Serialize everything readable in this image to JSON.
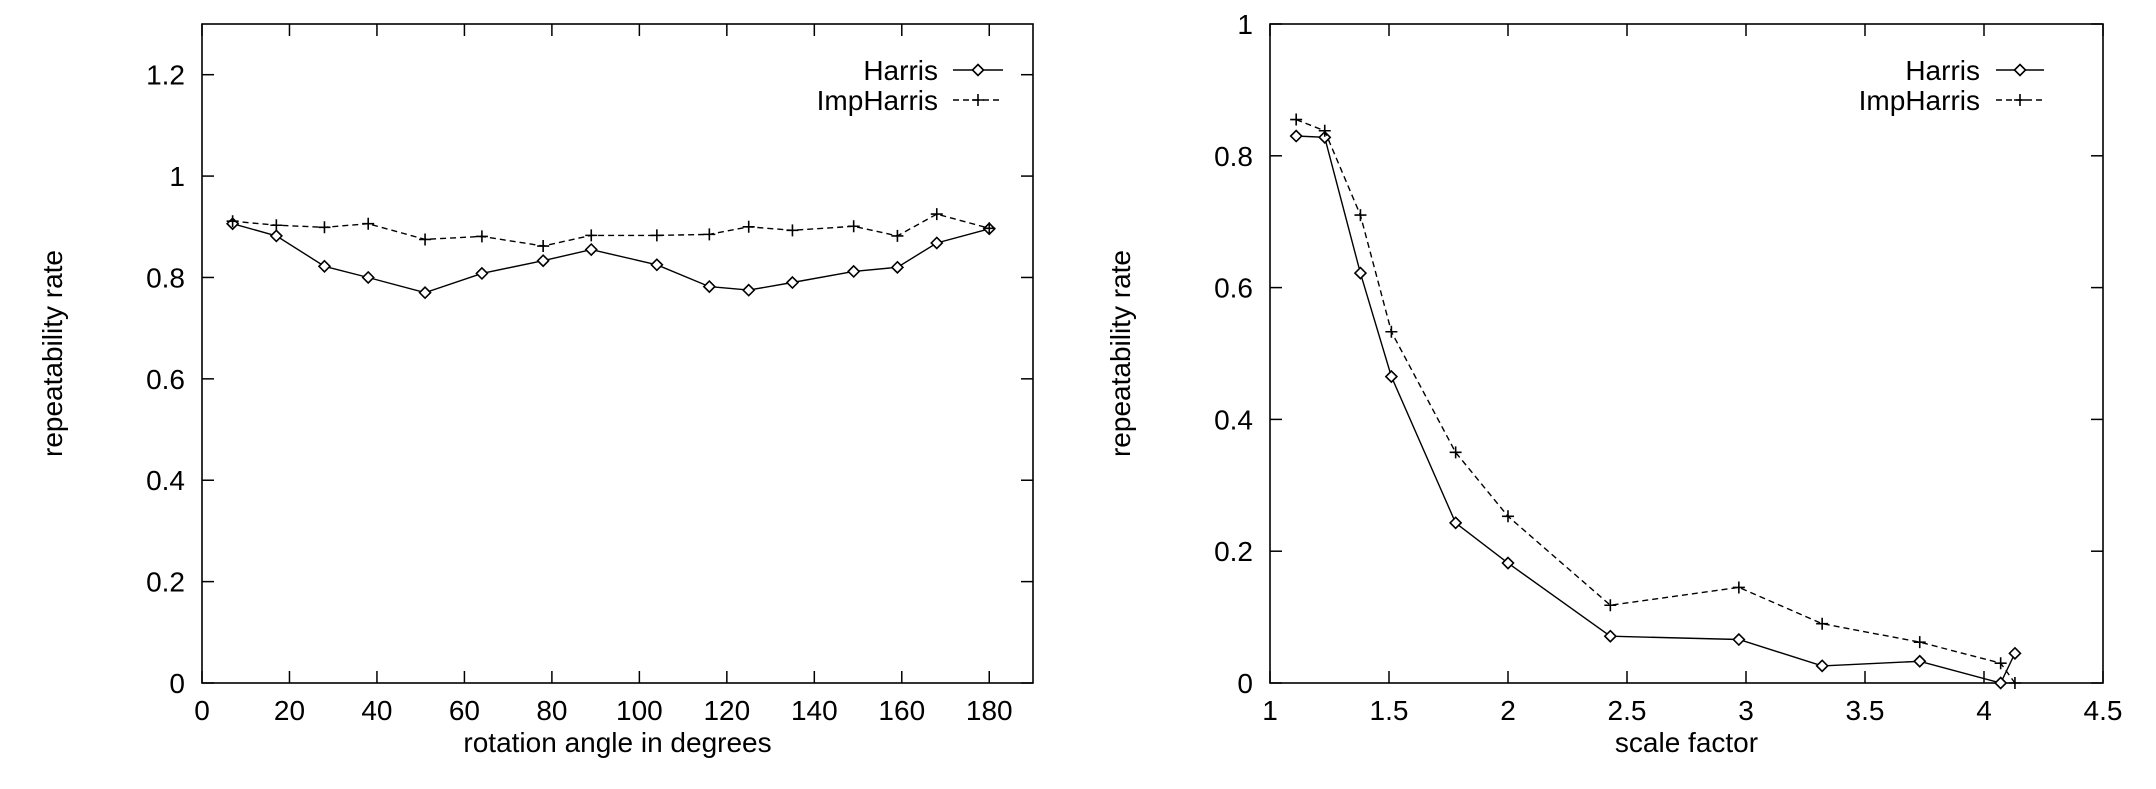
{
  "chart_data": [
    {
      "type": "line",
      "title": "",
      "xlabel": "rotation angle in degrees",
      "ylabel": "repeatability rate",
      "xlim": [
        0,
        190
      ],
      "ylim": [
        0,
        1.3
      ],
      "xticks": [
        0,
        20,
        40,
        60,
        80,
        100,
        120,
        140,
        160,
        180
      ],
      "yticks": [
        0,
        0.2,
        0.4,
        0.6,
        0.8,
        1,
        1.2
      ],
      "xtick_labels": [
        "0",
        "20",
        "40",
        "60",
        "80",
        "100",
        "120",
        "140",
        "160",
        "180"
      ],
      "ytick_labels": [
        "0",
        "0.2",
        "0.4",
        "0.6",
        "0.8",
        "1",
        "1.2"
      ],
      "grid": false,
      "legend": "top-right",
      "series": [
        {
          "name": "Harris",
          "marker": "diamond",
          "line": "solid",
          "x": [
            7,
            17,
            28,
            38,
            51,
            64,
            78,
            89,
            104,
            116,
            125,
            135,
            149,
            159,
            168,
            180
          ],
          "y": [
            0.906,
            0.882,
            0.822,
            0.8,
            0.77,
            0.808,
            0.833,
            0.855,
            0.825,
            0.782,
            0.775,
            0.79,
            0.812,
            0.82,
            0.868,
            0.896
          ]
        },
        {
          "name": "ImpHarris",
          "marker": "plus",
          "line": "dashed",
          "x": [
            7,
            17,
            28,
            38,
            51,
            64,
            78,
            89,
            104,
            116,
            125,
            135,
            149,
            159,
            168,
            180
          ],
          "y": [
            0.911,
            0.903,
            0.899,
            0.906,
            0.875,
            0.881,
            0.862,
            0.883,
            0.883,
            0.885,
            0.9,
            0.893,
            0.901,
            0.882,
            0.925,
            0.897
          ]
        }
      ]
    },
    {
      "type": "line",
      "title": "",
      "xlabel": "scale factor",
      "ylabel": "repeatability rate",
      "xlim": [
        1,
        4.5
      ],
      "ylim": [
        0,
        1
      ],
      "xticks": [
        1,
        1.5,
        2,
        2.5,
        3,
        3.5,
        4,
        4.5
      ],
      "yticks": [
        0,
        0.2,
        0.4,
        0.6,
        0.8,
        1
      ],
      "xtick_labels": [
        "1",
        "1.5",
        "2",
        "2.5",
        "3",
        "3.5",
        "4",
        "4.5"
      ],
      "ytick_labels": [
        "0",
        "0.2",
        "0.4",
        "0.6",
        "0.8",
        "1"
      ],
      "grid": false,
      "legend": "top-right",
      "series": [
        {
          "name": "Harris",
          "marker": "diamond",
          "line": "solid",
          "x": [
            1.11,
            1.23,
            1.38,
            1.51,
            1.78,
            2.0,
            2.43,
            2.97,
            3.32,
            3.73,
            4.07,
            4.13
          ],
          "y": [
            0.83,
            0.828,
            0.622,
            0.465,
            0.243,
            0.182,
            0.071,
            0.066,
            0.026,
            0.033,
            0.0,
            0.045
          ]
        },
        {
          "name": "ImpHarris",
          "marker": "plus",
          "line": "dashed",
          "x": [
            1.11,
            1.23,
            1.38,
            1.51,
            1.78,
            2.0,
            2.43,
            2.97,
            3.32,
            3.73,
            4.07,
            4.13
          ],
          "y": [
            0.855,
            0.838,
            0.71,
            0.533,
            0.35,
            0.253,
            0.118,
            0.145,
            0.09,
            0.062,
            0.03,
            0.0
          ]
        }
      ]
    }
  ]
}
